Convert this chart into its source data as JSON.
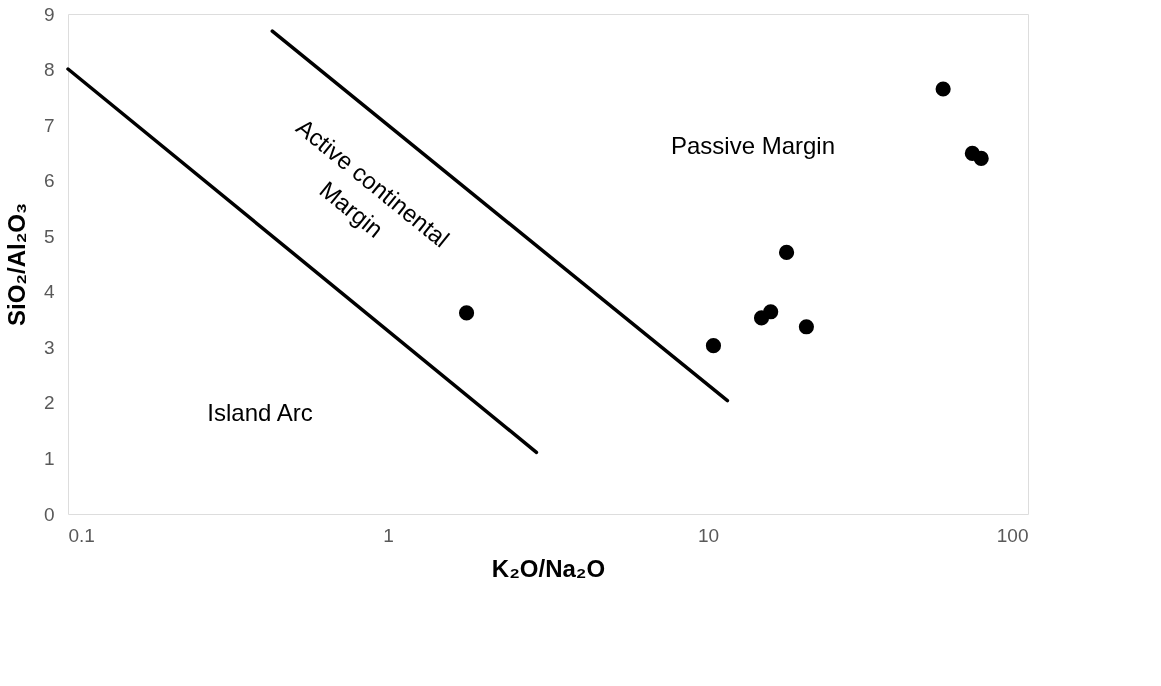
{
  "chart_data": {
    "type": "scatter",
    "xlabel": "K₂O/Na₂O",
    "ylabel": "SiO₂/Al₂O₃",
    "log": "x",
    "xlim": [
      0.1,
      100
    ],
    "xticks": [
      0.1,
      1,
      10,
      100
    ],
    "ylim": [
      0,
      9
    ],
    "yticks": [
      {
        "value": 0,
        "label": "0"
      },
      {
        "value": 1,
        "label": "1"
      },
      {
        "value": 2,
        "label": "2"
      },
      {
        "value": 3,
        "label": "3"
      },
      {
        "value": 4,
        "label": "4"
      },
      {
        "value": 5,
        "label": "5"
      },
      {
        "value": 6,
        "label": "6"
      },
      {
        "value": 7,
        "label": "7"
      },
      {
        "value": 8,
        "label": "8"
      },
      {
        "value": 9,
        "label": "9"
      }
    ],
    "grid": false,
    "series": [
      {
        "color": "#000000",
        "marker": "circle",
        "x": [
          1.76,
          10.4,
          14.7,
          15.7,
          17.6,
          20.3,
          54.3,
          67,
          71.4
        ],
        "values": [
          3.62,
          3.03,
          3.53,
          3.64,
          4.71,
          3.37,
          7.65,
          6.49,
          6.4
        ]
      },
      {
        "type": "line",
        "color": "#000000",
        "marker": "none",
        "line_style": "solid",
        "x": [
          0.1,
          2.91
        ],
        "values": [
          8.01,
          1.11
        ]
      },
      {
        "type": "line",
        "color": "#000000",
        "marker": "none",
        "line_style": "solid",
        "x": [
          0.435,
          11.5
        ],
        "values": [
          8.69,
          2.04
        ]
      }
    ],
    "annotations": [
      "Island Arc",
      "Active continental\nMargin",
      "Passive Margin"
    ]
  }
}
